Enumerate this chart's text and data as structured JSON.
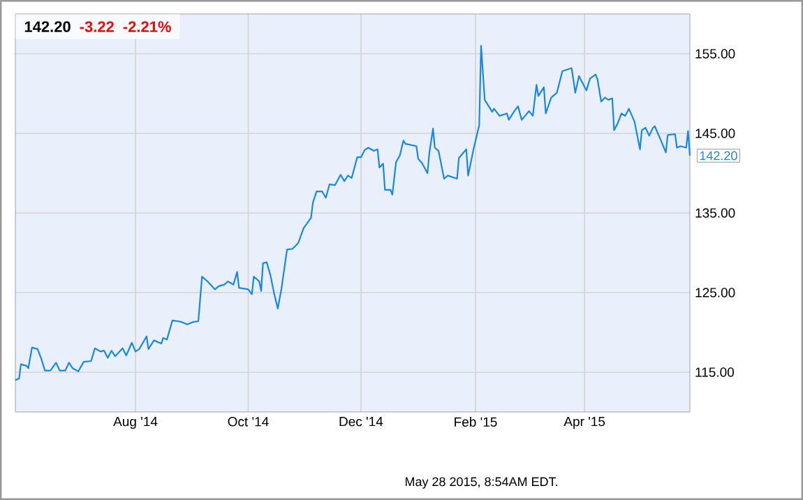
{
  "chart_data": {
    "type": "line",
    "title": "142.20",
    "x": [
      "2014-05-28",
      "2014-05-30",
      "2014-05-31",
      "2014-06-03",
      "2014-06-04",
      "2014-06-06",
      "2014-06-09",
      "2014-06-11",
      "2014-06-13",
      "2014-06-16",
      "2014-06-19",
      "2014-06-21",
      "2014-06-24",
      "2014-06-26",
      "2014-06-28",
      "2014-07-01",
      "2014-07-04",
      "2014-07-08",
      "2014-07-10",
      "2014-07-13",
      "2014-07-15",
      "2014-07-17",
      "2014-07-19",
      "2014-07-21",
      "2014-07-25",
      "2014-07-27",
      "2014-07-30",
      "2014-08-01",
      "2014-08-03",
      "2014-08-07",
      "2014-08-08",
      "2014-08-11",
      "2014-08-15",
      "2014-08-16",
      "2014-08-18",
      "2014-08-21",
      "2014-08-24",
      "2014-08-26",
      "2014-08-29",
      "2014-09-01",
      "2014-09-04",
      "2014-09-06",
      "2014-09-09",
      "2014-09-13",
      "2014-09-15",
      "2014-09-18",
      "2014-09-20",
      "2014-09-23",
      "2014-09-25",
      "2014-09-26",
      "2014-10-01",
      "2014-10-03",
      "2014-10-04",
      "2014-10-07",
      "2014-10-08",
      "2014-10-09",
      "2014-10-11",
      "2014-10-13",
      "2014-10-15",
      "2014-10-17",
      "2014-10-19",
      "2014-10-22",
      "2014-10-25",
      "2014-10-28",
      "2014-10-31",
      "2014-11-04",
      "2014-11-05",
      "2014-11-07",
      "2014-11-10",
      "2014-11-12",
      "2014-11-14",
      "2014-11-17",
      "2014-11-20",
      "2014-11-22",
      "2014-11-24",
      "2014-11-26",
      "2014-11-29",
      "2014-12-01",
      "2014-12-03",
      "2014-12-05",
      "2014-12-08",
      "2014-12-10",
      "2014-12-11",
      "2014-12-13",
      "2014-12-14",
      "2014-12-17",
      "2014-12-18",
      "2014-12-20",
      "2014-12-22",
      "2014-12-24",
      "2014-12-25",
      "2014-12-31",
      "2015-01-01",
      "2015-01-03",
      "2015-01-06",
      "2015-01-07",
      "2015-01-09",
      "2015-01-10",
      "2015-01-12",
      "2015-01-15",
      "2015-01-17",
      "2015-01-22",
      "2015-01-23",
      "2015-01-27",
      "2015-01-28",
      "2015-01-31",
      "2015-02-03",
      "2015-02-04",
      "2015-02-06",
      "2015-02-09",
      "2015-02-10",
      "2015-02-11",
      "2015-02-14",
      "2015-02-18",
      "2015-02-19",
      "2015-02-22",
      "2015-02-24",
      "2015-02-26",
      "2015-03-02",
      "2015-03-04",
      "2015-03-06",
      "2015-03-07",
      "2015-03-10",
      "2015-03-11",
      "2015-03-14",
      "2015-03-17",
      "2015-03-20",
      "2015-03-21",
      "2015-03-25",
      "2015-03-27",
      "2015-03-29",
      "2015-04-02",
      "2015-04-04",
      "2015-04-07",
      "2015-04-08",
      "2015-04-10",
      "2015-04-12",
      "2015-04-14",
      "2015-04-16",
      "2015-04-17",
      "2015-04-19",
      "2015-04-21",
      "2015-04-23",
      "2015-04-25",
      "2015-04-28",
      "2015-05-01",
      "2015-05-02",
      "2015-05-04",
      "2015-05-06",
      "2015-05-08",
      "2015-05-09",
      "2015-05-12",
      "2015-05-15",
      "2015-05-16",
      "2015-05-20",
      "2015-05-21",
      "2015-05-23",
      "2015-05-26",
      "2015-05-27",
      "2015-05-28"
    ],
    "series": [
      {
        "color": "#1a87e6",
        "values": [
          114.0,
          114.2,
          116.0,
          115.8,
          115.5,
          118.1,
          117.9,
          116.7,
          115.2,
          115.2,
          116.2,
          115.2,
          115.2,
          116.2,
          115.5,
          115.1,
          116.3,
          116.4,
          118.0,
          117.6,
          117.7,
          116.8,
          117.7,
          117.0,
          118.0,
          117.1,
          118.7,
          117.6,
          117.9,
          119.5,
          117.9,
          119.0,
          118.6,
          119.3,
          119.1,
          121.5,
          121.4,
          121.3,
          121.0,
          121.3,
          121.4,
          127.0,
          126.4,
          125.4,
          125.8,
          126.0,
          126.4,
          126.0,
          127.6,
          125.6,
          125.4,
          124.8,
          127.0,
          126.4,
          125.2,
          128.7,
          128.8,
          127.2,
          124.9,
          123.0,
          125.5,
          130.4,
          130.5,
          131.2,
          133.1,
          134.4,
          136.3,
          137.7,
          137.7,
          136.9,
          138.6,
          138.5,
          139.8,
          139.0,
          139.7,
          139.4,
          142.0,
          142.0,
          142.9,
          143.2,
          142.8,
          143.0,
          140.7,
          141.2,
          137.9,
          137.9,
          137.3,
          141.4,
          142.2,
          144.1,
          143.7,
          143.4,
          141.8,
          141.3,
          140.0,
          142.5,
          145.6,
          143.2,
          142.8,
          139.3,
          139.7,
          139.3,
          141.9,
          143.0,
          139.7,
          143.1,
          146.0,
          156.0,
          149.2,
          148.1,
          147.7,
          148.1,
          147.2,
          147.5,
          146.7,
          147.8,
          148.4,
          146.7,
          147.8,
          147.2,
          151.1,
          149.7,
          150.8,
          147.5,
          149.5,
          150.1,
          152.8,
          152.9,
          153.2,
          150.1,
          152.2,
          150.4,
          151.9,
          152.4,
          151.8,
          149.0,
          149.5,
          149.2,
          149.4,
          145.4,
          146.3,
          147.5,
          147.2,
          148.1,
          146.5,
          143.0,
          145.4,
          145.7,
          144.7,
          145.7,
          145.9,
          144.3,
          142.6,
          144.8,
          144.9,
          143.2,
          143.4,
          143.2,
          145.3,
          142.2
        ]
      }
    ],
    "xlim": [
      "2014-05-28",
      "2015-05-28"
    ],
    "xticks": [
      {
        "value": "2014-08-01",
        "label": "Aug '14"
      },
      {
        "value": "2014-10-01",
        "label": "Oct '14"
      },
      {
        "value": "2014-12-01",
        "label": "Dec '14"
      },
      {
        "value": "2015-02-01",
        "label": "Feb '15"
      },
      {
        "value": "2015-04-01",
        "label": "Apr '15"
      }
    ],
    "ylim": [
      110,
      160
    ],
    "yticks": [
      {
        "value": 115,
        "label": "115.00"
      },
      {
        "value": 125,
        "label": "125.00"
      },
      {
        "value": 135,
        "label": "135.00"
      },
      {
        "value": 145,
        "label": "145.00"
      },
      {
        "value": 155,
        "label": "155.00"
      }
    ],
    "grid": true,
    "marker": "none",
    "line_style": "solid",
    "annotations": [
      "-3.22",
      "-2.21%",
      {
        "text": "142.20",
        "x": "2015-05-28",
        "y": 142.2
      },
      "May 28 2015, 8:54AM EDT."
    ]
  }
}
